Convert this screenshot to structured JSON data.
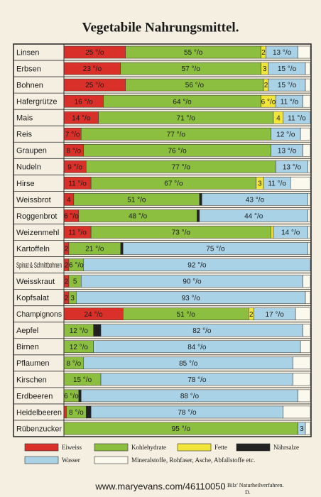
{
  "chart_data": {
    "type": "stacked-bar",
    "title": "Vegetabile Nahrungsmittel.",
    "categories": [
      "Linsen",
      "Erbsen",
      "Bohnen",
      "Hafergrütze",
      "Mais",
      "Reis",
      "Graupen",
      "Nudeln",
      "Hirse",
      "Weissbrot",
      "Roggenbrot",
      "Weizenmehl",
      "Kartoffeln",
      "Spinat & Schnittbohnen",
      "Weisskraut",
      "Kopfsalat",
      "Champignons",
      "Aepfel",
      "Birnen",
      "Pflaumen",
      "Kirschen",
      "Erdbeeren",
      "Heidelbeeren",
      "Rübenzucker"
    ],
    "xlim": [
      0,
      100
    ],
    "series": [
      {
        "name": "Eiweiss",
        "color": "#d9302a",
        "values": [
          25,
          23,
          25,
          16,
          14,
          7,
          8,
          9,
          11,
          4,
          6,
          11,
          2,
          2,
          2,
          2,
          24,
          null,
          null,
          null,
          null,
          null,
          1,
          null
        ],
        "value_labels": [
          "25 °/o",
          "23 °/o",
          "25 °/o",
          "16 °/o",
          "14 °/o",
          "7 °/o",
          "8 °/o",
          "9 °/o",
          "11 °/o",
          "4",
          "6 °/o",
          "11 °/o",
          "2",
          "2",
          "2",
          "2",
          "24 °/o",
          null,
          null,
          null,
          null,
          null,
          null,
          null
        ]
      },
      {
        "name": "Kohlehydrate",
        "color": "#8cbf3f",
        "values": [
          55,
          57,
          56,
          64,
          71,
          77,
          76,
          77,
          67,
          51,
          48,
          73,
          21,
          6,
          5,
          3,
          51,
          12,
          12,
          8,
          15,
          6,
          8,
          95
        ],
        "value_labels": [
          "55 °/o",
          "57 °/o",
          "56 °/o",
          "64 °/o",
          "71 °/o",
          "77 °/o",
          "76 °/o",
          "77 °/o",
          "67 °/o",
          "51 °/o",
          "48 °/o",
          "73 °/o",
          "21 °/o",
          "6 °/o",
          "5",
          "3",
          "51 °/o",
          "12 °/o",
          "12 °/o",
          "8 °/o",
          "15 °/o",
          "6 °/o",
          "8 °/o",
          "95 °/o"
        ]
      },
      {
        "name": "Fette",
        "color": "#f2e53a",
        "values": [
          2,
          3,
          2,
          6,
          4,
          null,
          null,
          null,
          3,
          null,
          null,
          1,
          null,
          null,
          null,
          null,
          2,
          null,
          null,
          null,
          null,
          null,
          null,
          null
        ],
        "value_labels": [
          "2",
          "3",
          "2",
          "6 °/o",
          "4",
          null,
          null,
          null,
          "3",
          null,
          null,
          null,
          null,
          null,
          null,
          null,
          "2",
          null,
          null,
          null,
          null,
          null,
          null,
          null
        ]
      },
      {
        "name": "Nährsalze",
        "color": "#222222",
        "values": [
          null,
          null,
          null,
          null,
          null,
          null,
          null,
          null,
          null,
          1,
          1,
          null,
          1,
          null,
          null,
          null,
          null,
          3,
          null,
          null,
          null,
          1,
          2,
          null
        ],
        "value_labels": [
          null,
          null,
          null,
          null,
          null,
          null,
          null,
          null,
          null,
          null,
          null,
          null,
          null,
          null,
          null,
          null,
          null,
          "3",
          null,
          null,
          null,
          null,
          "2",
          null
        ]
      },
      {
        "name": "Wasser",
        "color": "#a9d2e6",
        "values": [
          13,
          15,
          15,
          11,
          11,
          12,
          13,
          13,
          11,
          43,
          44,
          14,
          75,
          92,
          90,
          93,
          17,
          82,
          84,
          85,
          78,
          88,
          78,
          3
        ],
        "value_labels": [
          "13 °/o",
          "15 °/o",
          "15 °/o",
          "11 °/o",
          "11 °/o",
          "12 °/o",
          "13 °/o",
          "13 °/o",
          "11 °/o",
          "43 °/o",
          "44 °/o",
          "14 °/o",
          "75 °/o",
          "92 °/o",
          "90 °/o",
          "93 °/o",
          "17 °/o",
          "82 °/o",
          "84 °/o",
          "85 °/o",
          "78 °/o",
          "88 °/o",
          "78 °/o",
          "3"
        ]
      },
      {
        "name": "Mineralstoffe, Rohfaser, Asche, Abfallstoffe etc.",
        "color": "#fbf8ee",
        "values": [
          5,
          2,
          2,
          3,
          null,
          4,
          3,
          1,
          8,
          1,
          1,
          1,
          1,
          null,
          3,
          2,
          6,
          3,
          4,
          7,
          7,
          5,
          11,
          2
        ],
        "value_labels": [
          null,
          null,
          null,
          null,
          null,
          null,
          null,
          null,
          null,
          null,
          null,
          null,
          null,
          null,
          null,
          null,
          null,
          null,
          null,
          null,
          null,
          null,
          null,
          null
        ]
      }
    ]
  },
  "footer": {
    "credit": "www.maryevans.com/46110050",
    "source": "Bilz' Naturheilverfahren.",
    "mark": "D."
  }
}
